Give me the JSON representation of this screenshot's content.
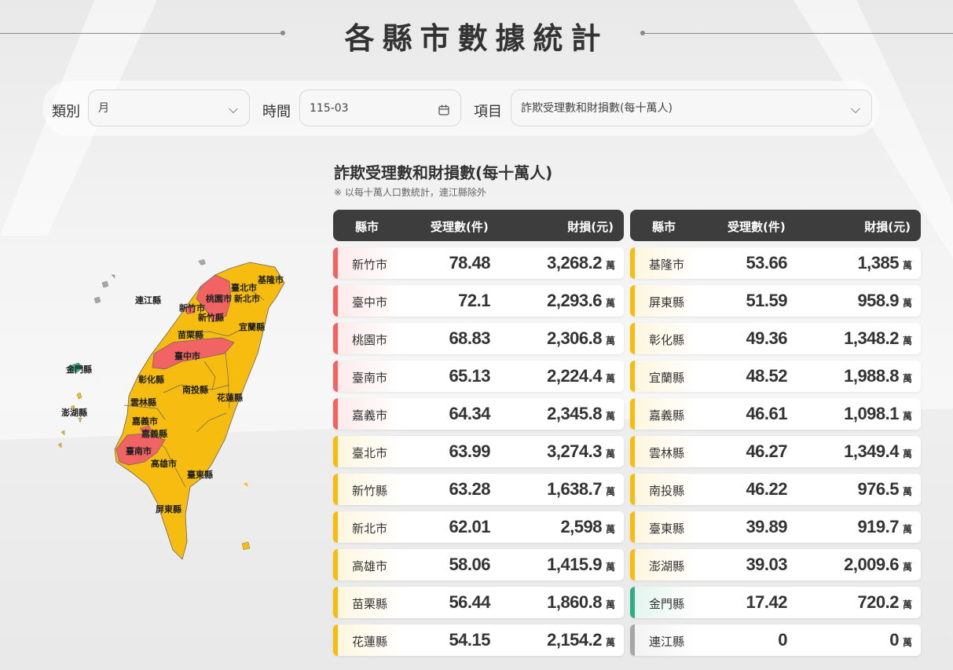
{
  "page_title": "各縣市數據統計",
  "filters": {
    "category_label": "類別",
    "category_value": "月",
    "time_label": "時間",
    "time_value": "115-03",
    "item_label": "項目",
    "item_value": "詐欺受理數和財損數(每十萬人)"
  },
  "section": {
    "title": "詐欺受理數和財損數(每十萬人)",
    "note": "※ 以每十萬人口數統計，連江縣除外"
  },
  "table_headers": {
    "county": "縣市",
    "cases": "受理數(件)",
    "loss": "財損(元)"
  },
  "unit": "萬",
  "colors": {
    "red": "#f26464",
    "yellow": "#f6bc0f",
    "green": "#2fae86",
    "gray": "#a6a6a6",
    "header_bg": "#3d3d3d"
  },
  "left_rows": [
    {
      "name": "新竹市",
      "cases": "78.48",
      "loss": "3,268.2",
      "level": "red"
    },
    {
      "name": "臺中市",
      "cases": "72.1",
      "loss": "2,293.6",
      "level": "red"
    },
    {
      "name": "桃園市",
      "cases": "68.83",
      "loss": "2,306.8",
      "level": "red"
    },
    {
      "name": "臺南市",
      "cases": "65.13",
      "loss": "2,224.4",
      "level": "red"
    },
    {
      "name": "嘉義市",
      "cases": "64.34",
      "loss": "2,345.8",
      "level": "red"
    },
    {
      "name": "臺北市",
      "cases": "63.99",
      "loss": "3,274.3",
      "level": "yellow"
    },
    {
      "name": "新竹縣",
      "cases": "63.28",
      "loss": "1,638.7",
      "level": "yellow"
    },
    {
      "name": "新北市",
      "cases": "62.01",
      "loss": "2,598",
      "level": "yellow"
    },
    {
      "name": "高雄市",
      "cases": "58.06",
      "loss": "1,415.9",
      "level": "yellow"
    },
    {
      "name": "苗栗縣",
      "cases": "56.44",
      "loss": "1,860.8",
      "level": "yellow"
    },
    {
      "name": "花蓮縣",
      "cases": "54.15",
      "loss": "2,154.2",
      "level": "yellow"
    }
  ],
  "right_rows": [
    {
      "name": "基隆市",
      "cases": "53.66",
      "loss": "1,385",
      "level": "yellow"
    },
    {
      "name": "屏東縣",
      "cases": "51.59",
      "loss": "958.9",
      "level": "yellow"
    },
    {
      "name": "彰化縣",
      "cases": "49.36",
      "loss": "1,348.2",
      "level": "yellow"
    },
    {
      "name": "宜蘭縣",
      "cases": "48.52",
      "loss": "1,988.8",
      "level": "yellow"
    },
    {
      "name": "嘉義縣",
      "cases": "46.61",
      "loss": "1,098.1",
      "level": "yellow"
    },
    {
      "name": "雲林縣",
      "cases": "46.27",
      "loss": "1,349.4",
      "level": "yellow"
    },
    {
      "name": "南投縣",
      "cases": "46.22",
      "loss": "976.5",
      "level": "yellow"
    },
    {
      "name": "臺東縣",
      "cases": "39.89",
      "loss": "919.7",
      "level": "yellow"
    },
    {
      "name": "澎湖縣",
      "cases": "39.03",
      "loss": "2,009.6",
      "level": "yellow"
    },
    {
      "name": "金門縣",
      "cases": "17.42",
      "loss": "720.2",
      "level": "green"
    },
    {
      "name": "連江縣",
      "cases": "0",
      "loss": "0",
      "level": "gray"
    }
  ],
  "map_labels": {
    "keelung": "基隆市",
    "taipei": "臺北市",
    "newtaipei": "新北市",
    "taoyuan": "桃園市",
    "hsinchu_city": "新竹市",
    "hsinchu_county": "新竹縣",
    "yilan": "宜蘭縣",
    "miaoli": "苗栗縣",
    "taichung": "臺中市",
    "changhua": "彰化縣",
    "nantou": "南投縣",
    "hualien": "花蓮縣",
    "yunlin": "雲林縣",
    "chiayi_city": "嘉義市",
    "chiayi_county": "嘉義縣",
    "tainan": "臺南市",
    "kaohsiung": "高雄市",
    "taitung": "臺東縣",
    "pingtung": "屏東縣",
    "lienchiang": "連江縣",
    "kinmen": "金門縣",
    "penghu": "澎湖縣"
  }
}
